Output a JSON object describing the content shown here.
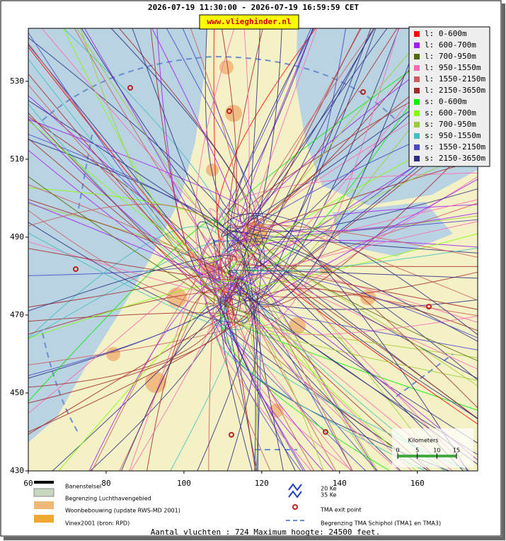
{
  "header": {
    "title": "2026-07-19 11:30:00 - 2026-07-19 16:59:59 CET",
    "site": "www.vlieghinder.nl"
  },
  "map": {
    "xlim": [
      60,
      175.5
    ],
    "ylim": [
      430,
      543.6
    ],
    "xticks": [
      60,
      80,
      100,
      120,
      140,
      160
    ],
    "yticks": [
      430,
      450,
      470,
      490,
      510,
      530
    ]
  },
  "legend": [
    {
      "label": "l: 0-600m",
      "color": "#ff0000"
    },
    {
      "label": "l: 600-700m",
      "color": "#a020f0"
    },
    {
      "label": "l: 700-950m",
      "color": "#4f6b00"
    },
    {
      "label": "l: 950-1550m",
      "color": "#ff69b4"
    },
    {
      "label": "l: 1550-2150m",
      "color": "#cd5c5c"
    },
    {
      "label": "l: 2150-3650m",
      "color": "#a52a2a"
    },
    {
      "label": "s: 0-600m",
      "color": "#00ee00"
    },
    {
      "label": "s: 600-700m",
      "color": "#7fff00"
    },
    {
      "label": "s: 700-950m",
      "color": "#9acd32"
    },
    {
      "label": "s: 950-1550m",
      "color": "#40c0c0"
    },
    {
      "label": "s: 1550-2150m",
      "color": "#4848c8"
    },
    {
      "label": "s: 2150-3650m",
      "color": "#2c2c80"
    }
  ],
  "scale": {
    "title": "Kilometers",
    "ticks": [
      0,
      5,
      10,
      15
    ]
  },
  "key": {
    "runways": "Banenstelsel",
    "airport": "Begrenzing Luchthavengebied",
    "housing": "Woonbebouwing (update RWS-MD 2001)",
    "vinex": "Vinex2001 (bron: RPD)",
    "ke20": "20 Ke",
    "ke35": "35 Ke",
    "exit": "TMA exit point",
    "tma": "Begrenzing TMA Schiphol  (TMA1 en TMA3)"
  },
  "footer": "Aantal vluchten : 724 Maximum hoogte: 24500 feet."
}
